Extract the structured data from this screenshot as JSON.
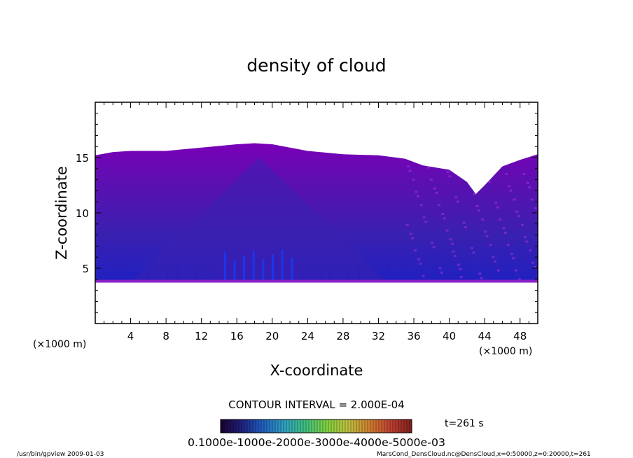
{
  "chart_data": {
    "type": "heatmap",
    "title": "density of cloud",
    "xlabel": "X-coordinate",
    "ylabel": "Z-coordinate",
    "x_units": "(×1000 m)",
    "y_units": "(×1000 m)",
    "xlim": [
      0,
      50
    ],
    "ylim": [
      0,
      20
    ],
    "x_ticks": [
      "4",
      "8",
      "12",
      "16",
      "20",
      "24",
      "28",
      "32",
      "36",
      "40",
      "44",
      "48"
    ],
    "y_ticks": [
      "5",
      "10",
      "15"
    ],
    "contour_interval": "CONTOUR INTERVAL = 2.000E-04",
    "time_label": "t=261 s",
    "colorbar_labels": "0.1000e-1000e-2000e-3000e-4000e-5000e-03",
    "colorbar_colors": [
      "#1a0030",
      "#202080",
      "#2060c0",
      "#30a0c0",
      "#40c080",
      "#80d040",
      "#c0c040",
      "#d08030",
      "#c04030",
      "#802020"
    ],
    "field_colors": [
      "#7a00b8",
      "#5a10b0",
      "#3a20b0",
      "#2020c0",
      "#1030d8"
    ],
    "cloud_base_z": 3.7,
    "cloud_top": {
      "x": [
        0,
        2,
        4,
        8,
        12,
        16,
        18,
        20,
        24,
        28,
        32,
        35,
        37,
        40,
        42,
        43,
        44,
        46,
        48,
        50
      ],
      "z": [
        15.2,
        15.5,
        15.6,
        15.6,
        15.9,
        16.2,
        16.3,
        16.2,
        15.6,
        15.3,
        15.2,
        14.9,
        14.3,
        13.9,
        12.8,
        11.7,
        12.5,
        14.2,
        14.8,
        15.3
      ]
    },
    "footer_left": "/usr/bin/gpview  2009-01-03",
    "footer_right": "MarsCond_DensCloud.nc@DensCloud,x=0:50000,z=0:20000,t=261"
  }
}
